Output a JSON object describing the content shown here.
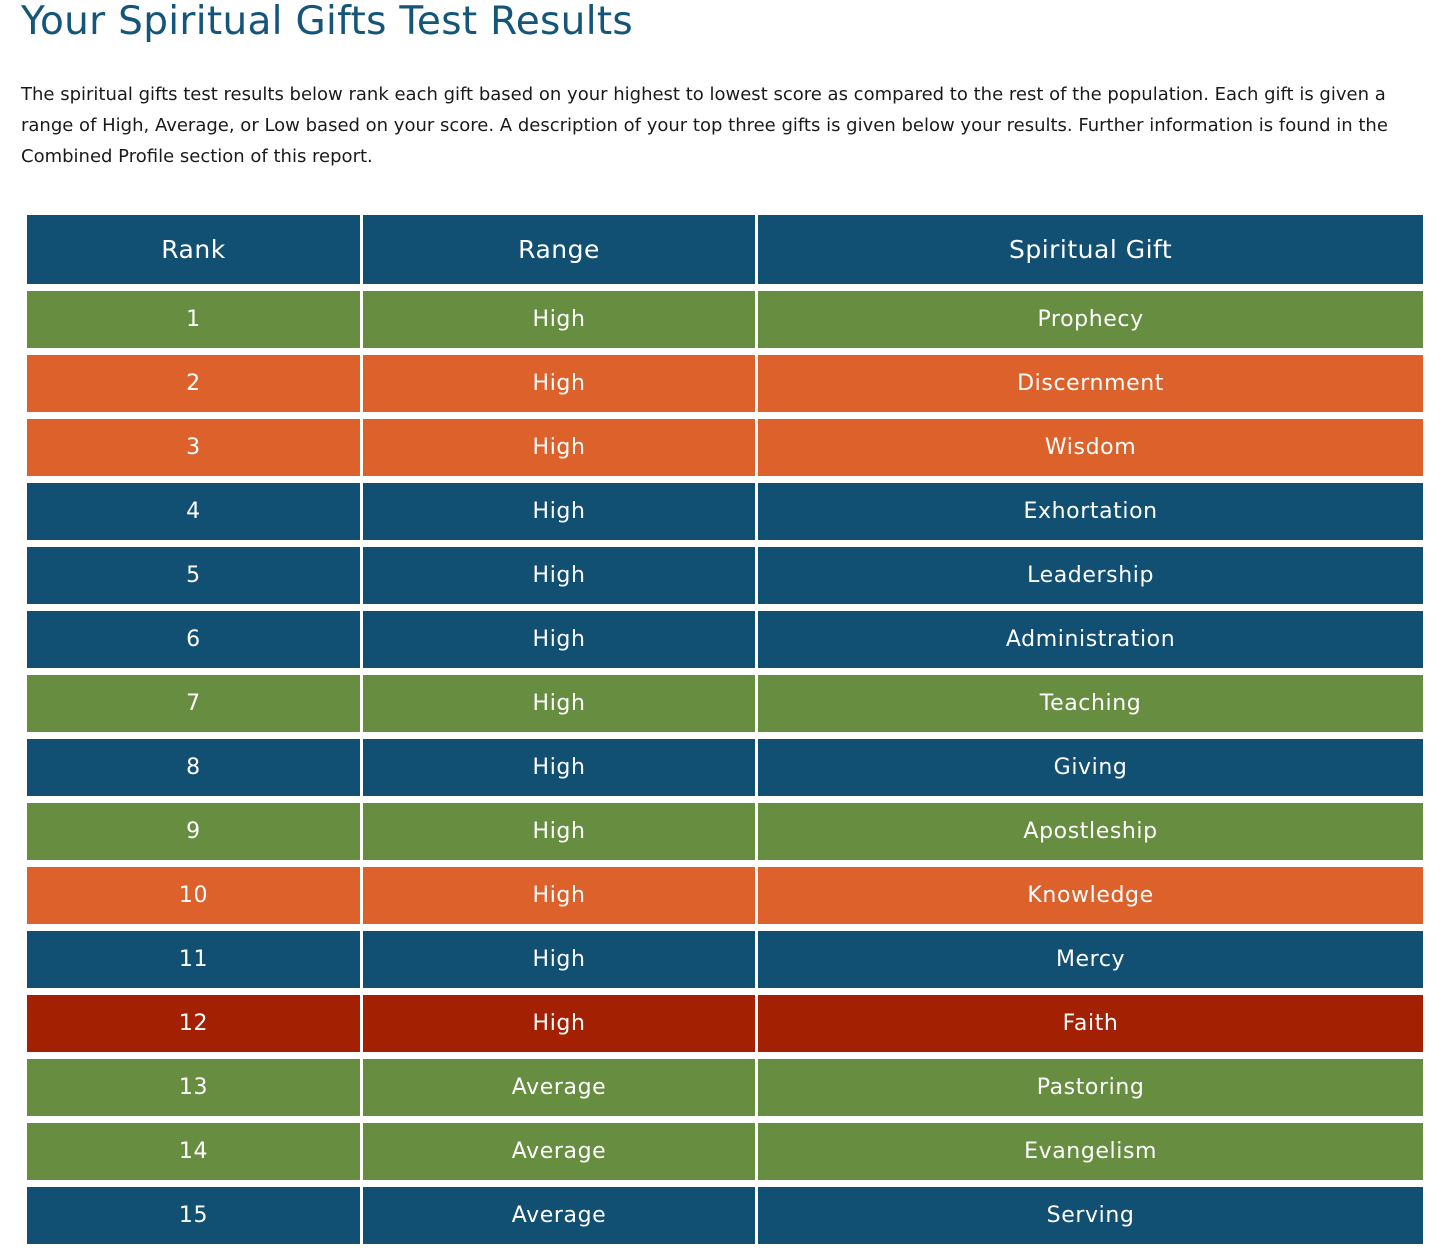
{
  "page": {
    "title": "Your Spiritual Gifts Test Results",
    "intro": "The spiritual gifts test results below rank each gift based on your highest to lowest score as compared to the rest of the population. Each gift is given a range of High, Average, or Low based on your score. A description of your top three gifts is given below your results. Further information is found in the Combined Profile section of this report."
  },
  "colors": {
    "title": "#14557a",
    "header": "#114f73",
    "blue": "#114f73",
    "green": "#678d41",
    "orange": "#dd612a",
    "red": "#a42002"
  },
  "table": {
    "headers": [
      "Rank",
      "Range",
      "Spiritual Gift"
    ],
    "rows": [
      {
        "rank": "1",
        "range": "High",
        "gift": "Prophecy",
        "color": "green"
      },
      {
        "rank": "2",
        "range": "High",
        "gift": "Discernment",
        "color": "orange"
      },
      {
        "rank": "3",
        "range": "High",
        "gift": "Wisdom",
        "color": "orange"
      },
      {
        "rank": "4",
        "range": "High",
        "gift": "Exhortation",
        "color": "blue"
      },
      {
        "rank": "5",
        "range": "High",
        "gift": "Leadership",
        "color": "blue"
      },
      {
        "rank": "6",
        "range": "High",
        "gift": "Administration",
        "color": "blue"
      },
      {
        "rank": "7",
        "range": "High",
        "gift": "Teaching",
        "color": "green"
      },
      {
        "rank": "8",
        "range": "High",
        "gift": "Giving",
        "color": "blue"
      },
      {
        "rank": "9",
        "range": "High",
        "gift": "Apostleship",
        "color": "green"
      },
      {
        "rank": "10",
        "range": "High",
        "gift": "Knowledge",
        "color": "orange"
      },
      {
        "rank": "11",
        "range": "High",
        "gift": "Mercy",
        "color": "blue"
      },
      {
        "rank": "12",
        "range": "High",
        "gift": "Faith",
        "color": "red"
      },
      {
        "rank": "13",
        "range": "Average",
        "gift": "Pastoring",
        "color": "green"
      },
      {
        "rank": "14",
        "range": "Average",
        "gift": "Evangelism",
        "color": "green"
      },
      {
        "rank": "15",
        "range": "Average",
        "gift": "Serving",
        "color": "blue"
      }
    ]
  }
}
